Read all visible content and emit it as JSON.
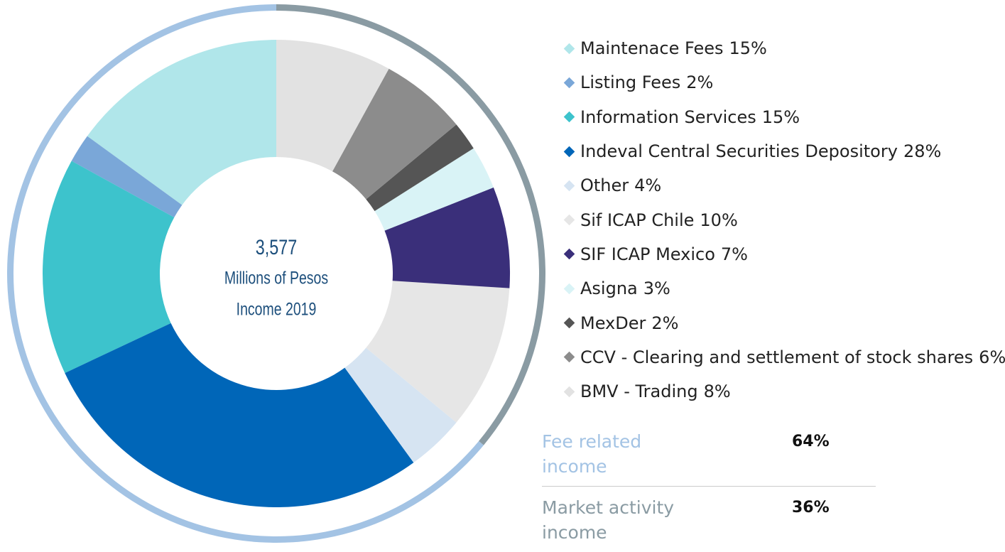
{
  "chart_data": {
    "type": "pie",
    "center_text": [
      "3,577",
      "Millions of Pesos",
      "Income 2019"
    ],
    "categories": [
      "Maintenace Fees",
      "Listing Fees",
      "Information Services",
      "Indeval Central Securities Depository",
      "Other",
      "Sif ICAP Chile",
      "SIF ICAP Mexico",
      "Asigna",
      "MexDer",
      "CCV - Clearing and settlement of stock shares",
      "BMV - Trading"
    ],
    "values": [
      15,
      2,
      15,
      28,
      4,
      10,
      7,
      3,
      2,
      6,
      8
    ],
    "value_labels": [
      "15%",
      "2%",
      "15%",
      "28%",
      "4%",
      "10%",
      "7%",
      "3%",
      "2%",
      "6%",
      "8%"
    ],
    "colors": [
      "#b0e6ea",
      "#7aa7d8",
      "#3dc3cc",
      "#0066b8",
      "#d6e4f2",
      "#e6e6e6",
      "#3a2f7a",
      "#d9f3f6",
      "#555555",
      "#8c8c8c",
      "#e2e2e2"
    ],
    "groups": {
      "categories": [
        "Fee related income",
        "Market activity income"
      ],
      "values": [
        64,
        36
      ],
      "value_labels": [
        "64%",
        "36%"
      ],
      "colors": [
        "#a3c3e4",
        "#8a9ba3"
      ]
    }
  }
}
